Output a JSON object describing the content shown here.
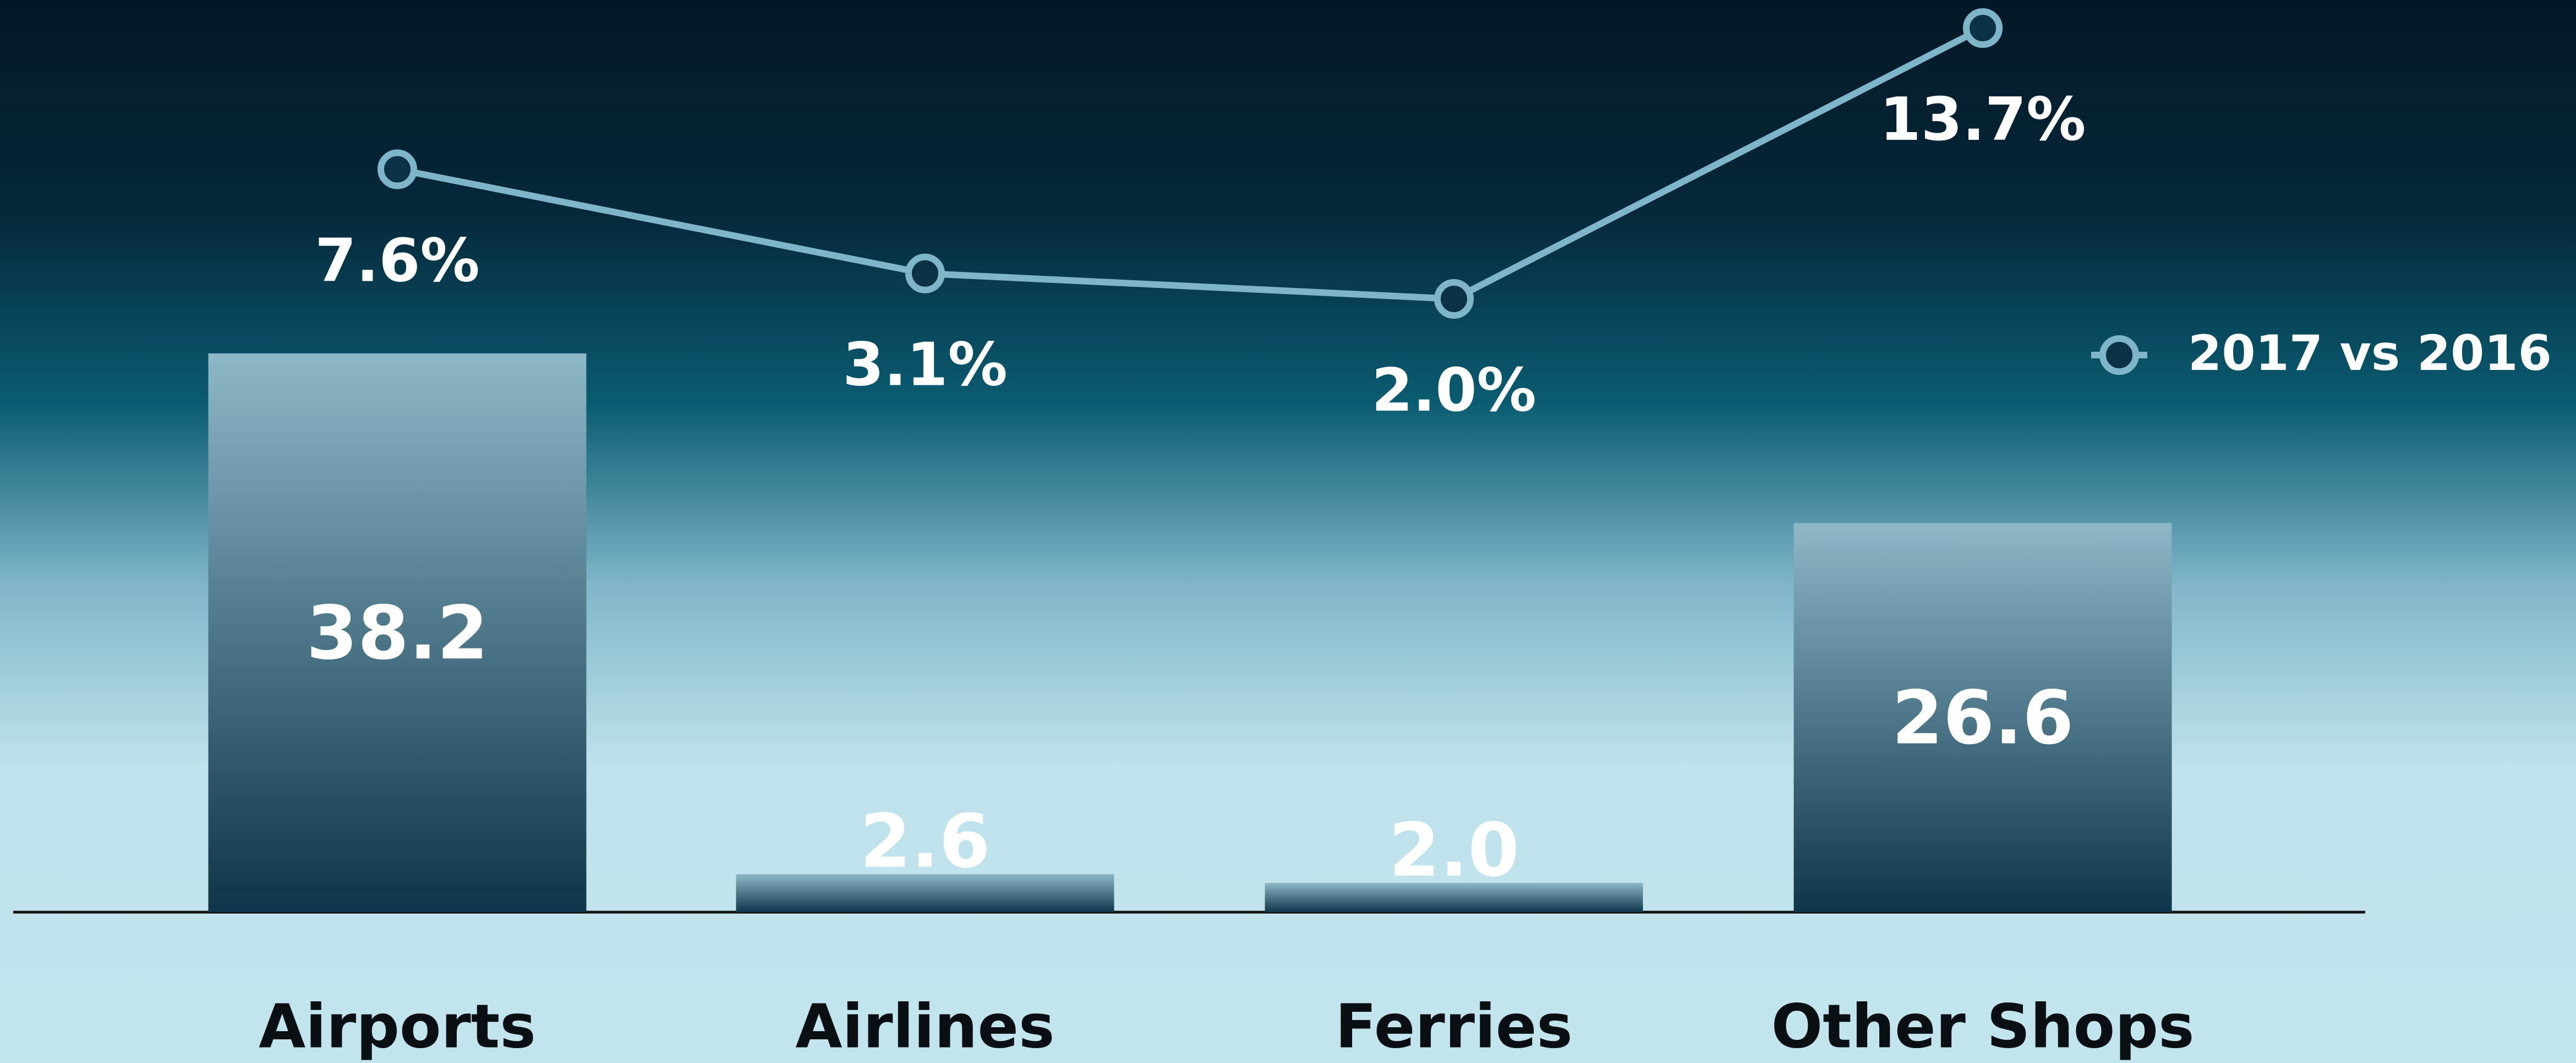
{
  "chart_data": {
    "type": "bar",
    "categories": [
      "Airports",
      "Airlines",
      "Ferries",
      "Other Shops"
    ],
    "series": [
      {
        "type": "bar",
        "color": "#0e3548",
        "values": [
          38.2,
          2.6,
          2.0,
          26.6
        ],
        "value_labels": [
          "38.2",
          "2.6",
          "2.0",
          "26.6"
        ]
      },
      {
        "type": "line",
        "name": "2017 vs 2016",
        "color": "#7fb5c9",
        "values": [
          7.6,
          3.1,
          2.0,
          13.7
        ],
        "value_labels": [
          "7.6%",
          "3.1%",
          "2.0%",
          "13.7%"
        ]
      }
    ],
    "legend": "right"
  }
}
